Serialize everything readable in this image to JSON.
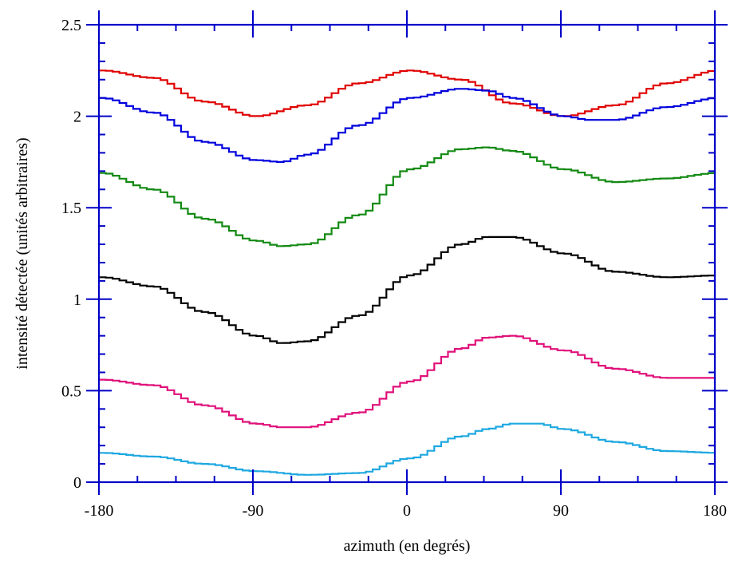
{
  "chart_data": {
    "type": "line",
    "xlabel": "azimuth (en degrés)",
    "ylabel": "intensité détectée (unités arbitraires)",
    "xlim": [
      -180,
      180
    ],
    "ylim": [
      0,
      2.5
    ],
    "grid": false,
    "legend": "none",
    "axis_color": "#0000c8",
    "x_ticks": [
      -180,
      -90,
      0,
      90,
      180
    ],
    "x_tick_labels": [
      "-180",
      "-90",
      "0",
      "90",
      "180"
    ],
    "y_ticks": [
      0,
      0.5,
      1,
      1.5,
      2,
      2.5
    ],
    "y_tick_labels": [
      "0",
      "0.5",
      "1",
      "1.5",
      "2",
      "2.5"
    ],
    "series": [
      {
        "color": "#e00000",
        "x": [
          -180,
          -150,
          -120,
          -90,
          -60,
          -30,
          0,
          30,
          60,
          90,
          120,
          150,
          180
        ],
        "y": [
          2.25,
          2.21,
          2.08,
          2.0,
          2.06,
          2.18,
          2.25,
          2.2,
          2.07,
          2.0,
          2.06,
          2.18,
          2.25
        ]
      },
      {
        "color": "#0000dd",
        "x": [
          -180,
          -150,
          -120,
          -90,
          -75,
          -60,
          -30,
          0,
          30,
          45,
          60,
          90,
          105,
          120,
          150,
          180
        ],
        "y": [
          2.1,
          2.02,
          1.86,
          1.76,
          1.75,
          1.79,
          1.95,
          2.1,
          2.15,
          2.14,
          2.1,
          2.0,
          1.98,
          1.98,
          2.05,
          2.1
        ]
      },
      {
        "color": "#138a13",
        "x": [
          -180,
          -150,
          -120,
          -90,
          -75,
          -60,
          -30,
          0,
          30,
          45,
          60,
          90,
          120,
          150,
          180
        ],
        "y": [
          1.69,
          1.6,
          1.44,
          1.32,
          1.29,
          1.3,
          1.46,
          1.71,
          1.82,
          1.83,
          1.81,
          1.71,
          1.64,
          1.66,
          1.69
        ]
      },
      {
        "color": "#000000",
        "x": [
          -180,
          -150,
          -120,
          -90,
          -75,
          -60,
          -30,
          0,
          30,
          45,
          60,
          90,
          120,
          150,
          180
        ],
        "y": [
          1.12,
          1.07,
          0.93,
          0.8,
          0.76,
          0.77,
          0.91,
          1.13,
          1.3,
          1.34,
          1.34,
          1.25,
          1.15,
          1.12,
          1.13
        ]
      },
      {
        "color": "#e0107a",
        "x": [
          -180,
          -150,
          -120,
          -90,
          -75,
          -60,
          -30,
          0,
          30,
          45,
          60,
          90,
          120,
          150,
          180
        ],
        "y": [
          0.56,
          0.53,
          0.42,
          0.32,
          0.3,
          0.3,
          0.38,
          0.55,
          0.73,
          0.79,
          0.8,
          0.72,
          0.62,
          0.57,
          0.57
        ]
      },
      {
        "color": "#1ea8e0",
        "x": [
          -180,
          -150,
          -120,
          -90,
          -60,
          -30,
          0,
          30,
          45,
          60,
          75,
          90,
          120,
          150,
          180
        ],
        "y": [
          0.16,
          0.14,
          0.1,
          0.06,
          0.04,
          0.05,
          0.13,
          0.25,
          0.29,
          0.32,
          0.32,
          0.29,
          0.22,
          0.17,
          0.16
        ]
      }
    ]
  }
}
